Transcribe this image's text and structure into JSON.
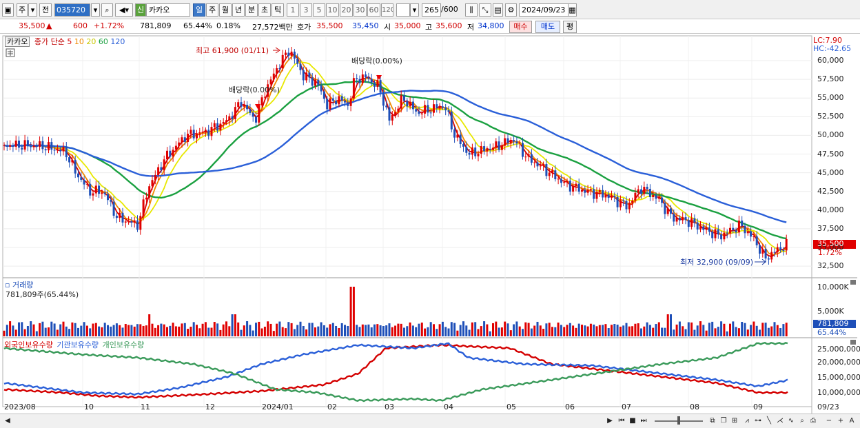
{
  "toolbar": {
    "period_label": "주",
    "prev_label": "전",
    "code": "035720",
    "stock_name": "카카오",
    "new_badge": "신",
    "period_buttons": [
      "일",
      "주",
      "월",
      "년",
      "분",
      "초",
      "틱"
    ],
    "minute_buttons": [
      "1",
      "3",
      "5",
      "10",
      "20",
      "30",
      "60",
      "120"
    ],
    "count": "265",
    "total": "/600",
    "date": "2024/09/23"
  },
  "quote": {
    "price": "35,500",
    "change": "600",
    "change_pct": "+1.72%",
    "volume": "781,809",
    "volume_pct": "65.44%",
    "turnover_rate": "0.18%",
    "amount": "27,572백만",
    "ask_label": "호가",
    "ask": "35,500",
    "bid": "35,450",
    "open_label": "시",
    "open": "35,000",
    "high_label": "고",
    "high": "35,600",
    "low_label": "저",
    "low": "34,800",
    "buy_label": "매수",
    "sell_label": "매도",
    "eval_label": "평"
  },
  "chart": {
    "stock_tag": "카카오",
    "ma_label": "종가 단순",
    "ma_periods": [
      "5",
      "10",
      "20",
      "60",
      "120"
    ],
    "ma_colors": [
      "#d40000",
      "#f08a00",
      "#e8e800",
      "#1aa040",
      "#2a5fd8"
    ],
    "lc": "LC:7.90",
    "hc": "HC:-42.65",
    "high_annot": "최고 61,900 (01/11)",
    "low_annot": "최저 32,900 (09/09)",
    "div1": "배당락(0.00%)",
    "div2": "배당락(0.00%)",
    "last_price_tag": "35,500",
    "last_pct_tag": "1.72%",
    "y_ticks": [
      "60,000",
      "57,500",
      "55,000",
      "52,500",
      "50,000",
      "47,500",
      "45,000",
      "42,500",
      "40,000",
      "37,500",
      "35,000",
      "32,500"
    ]
  },
  "volume_panel": {
    "title": "거래량",
    "value": "781,809주(65.44%)",
    "y_ticks": [
      "10,000K",
      "5,000K"
    ],
    "last_tag": "781,809",
    "last_pct": "65.44%"
  },
  "holdings_panel": {
    "series": [
      "외국인보유수량",
      "기관보유수량",
      "개인보유수량"
    ],
    "colors": [
      "#d40000",
      "#2a5fd8",
      "#3a9a5a"
    ],
    "y_ticks": [
      "25,000,000",
      "20,000,000",
      "15,000,000",
      "10,000,000"
    ]
  },
  "x_axis": [
    "2023/08",
    "10",
    "11",
    "12",
    "2024/01",
    "02",
    "03",
    "04",
    "05",
    "06",
    "07",
    "08",
    "09",
    "09/23"
  ]
}
